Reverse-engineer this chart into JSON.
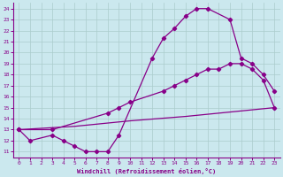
{
  "xlabel": "Windchill (Refroidissement éolien,°C)",
  "bg_color": "#cbe8ee",
  "line_color": "#880088",
  "grid_color": "#aacccc",
  "xlim": [
    -0.5,
    23.5
  ],
  "ylim": [
    10.5,
    24.5
  ],
  "xticks": [
    0,
    1,
    2,
    3,
    4,
    5,
    6,
    7,
    8,
    9,
    10,
    11,
    12,
    13,
    14,
    15,
    16,
    17,
    18,
    19,
    20,
    21,
    22,
    23
  ],
  "yticks": [
    11,
    12,
    13,
    14,
    15,
    16,
    17,
    18,
    19,
    20,
    21,
    22,
    23,
    24
  ],
  "curve1_x": [
    0,
    1,
    3,
    4,
    5,
    6,
    7,
    8,
    9,
    12,
    13,
    14,
    15,
    16,
    17,
    19,
    20,
    21,
    22,
    23
  ],
  "curve1_y": [
    13,
    12,
    12.5,
    12,
    11.5,
    11,
    11,
    11,
    12.5,
    19.5,
    21.3,
    22.2,
    23.3,
    24.0,
    24.0,
    23.0,
    19.5,
    19.0,
    18.0,
    16.5
  ],
  "curve2_x": [
    0,
    3,
    8,
    9,
    10,
    13,
    14,
    15,
    16,
    17,
    18,
    19,
    20,
    21,
    22,
    23
  ],
  "curve2_y": [
    13,
    13.0,
    14.5,
    15.0,
    15.5,
    16.5,
    17.0,
    17.5,
    18.0,
    18.5,
    18.5,
    19.0,
    19.0,
    18.5,
    17.5,
    15.0
  ],
  "curve3_x": [
    0,
    5,
    10,
    15,
    20,
    23
  ],
  "curve3_y": [
    13.0,
    13.3,
    13.8,
    14.2,
    14.7,
    15.0
  ]
}
